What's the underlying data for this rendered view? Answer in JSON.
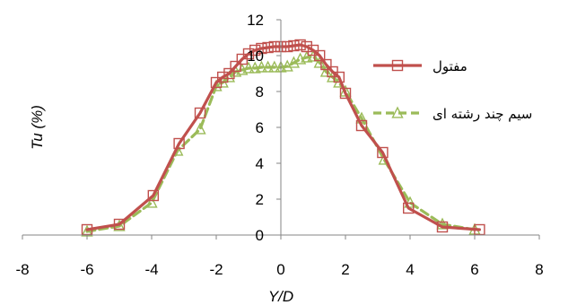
{
  "chart_data": {
    "type": "line",
    "xlabel": "Y/D",
    "ylabel": "Tu (%)",
    "xlim": [
      -8,
      8
    ],
    "ylim": [
      0,
      12
    ],
    "x_ticks": [
      -8,
      -6,
      -4,
      -2,
      0,
      2,
      4,
      6,
      8
    ],
    "y_ticks": [
      0,
      2,
      4,
      6,
      8,
      10,
      12
    ],
    "grid": false,
    "legend_position": "right",
    "series": [
      {
        "name": "مفتول",
        "color": "#C0504D",
        "marker": "square",
        "line_style": "solid",
        "x": [
          -6.0,
          -5.0,
          -3.95,
          -3.15,
          -2.5,
          -2.0,
          -1.8,
          -1.6,
          -1.4,
          -1.2,
          -1.0,
          -0.8,
          -0.6,
          -0.4,
          -0.2,
          0.0,
          0.2,
          0.4,
          0.6,
          0.8,
          1.0,
          1.2,
          1.4,
          1.6,
          1.8,
          2.0,
          2.5,
          3.15,
          3.95,
          5.0,
          6.15
        ],
        "y": [
          0.3,
          0.6,
          2.2,
          5.1,
          6.8,
          8.5,
          8.8,
          9.0,
          9.4,
          9.8,
          10.1,
          10.3,
          10.4,
          10.45,
          10.5,
          10.5,
          10.5,
          10.55,
          10.6,
          10.5,
          10.3,
          10.0,
          9.5,
          9.1,
          8.8,
          7.9,
          6.1,
          4.6,
          1.5,
          0.45,
          0.3
        ]
      },
      {
        "name": "سیم چند رشته ای",
        "color": "#9BBB59",
        "marker": "triangle",
        "line_style": "dashed",
        "x": [
          -6.0,
          -5.0,
          -4.0,
          -3.2,
          -2.5,
          -2.0,
          -1.8,
          -1.6,
          -1.4,
          -1.2,
          -1.0,
          -0.8,
          -0.6,
          -0.4,
          -0.2,
          0.0,
          0.2,
          0.4,
          0.6,
          0.8,
          1.0,
          1.2,
          1.4,
          1.6,
          1.8,
          2.0,
          2.5,
          3.2,
          4.0,
          5.0,
          6.0
        ],
        "y": [
          0.2,
          0.5,
          1.8,
          4.7,
          5.9,
          8.3,
          8.5,
          8.8,
          9.1,
          9.2,
          9.3,
          9.3,
          9.35,
          9.35,
          9.35,
          9.35,
          9.4,
          9.6,
          9.8,
          9.9,
          9.95,
          9.6,
          9.1,
          8.8,
          8.5,
          8.0,
          6.5,
          4.2,
          1.8,
          0.6,
          0.3
        ]
      }
    ]
  }
}
